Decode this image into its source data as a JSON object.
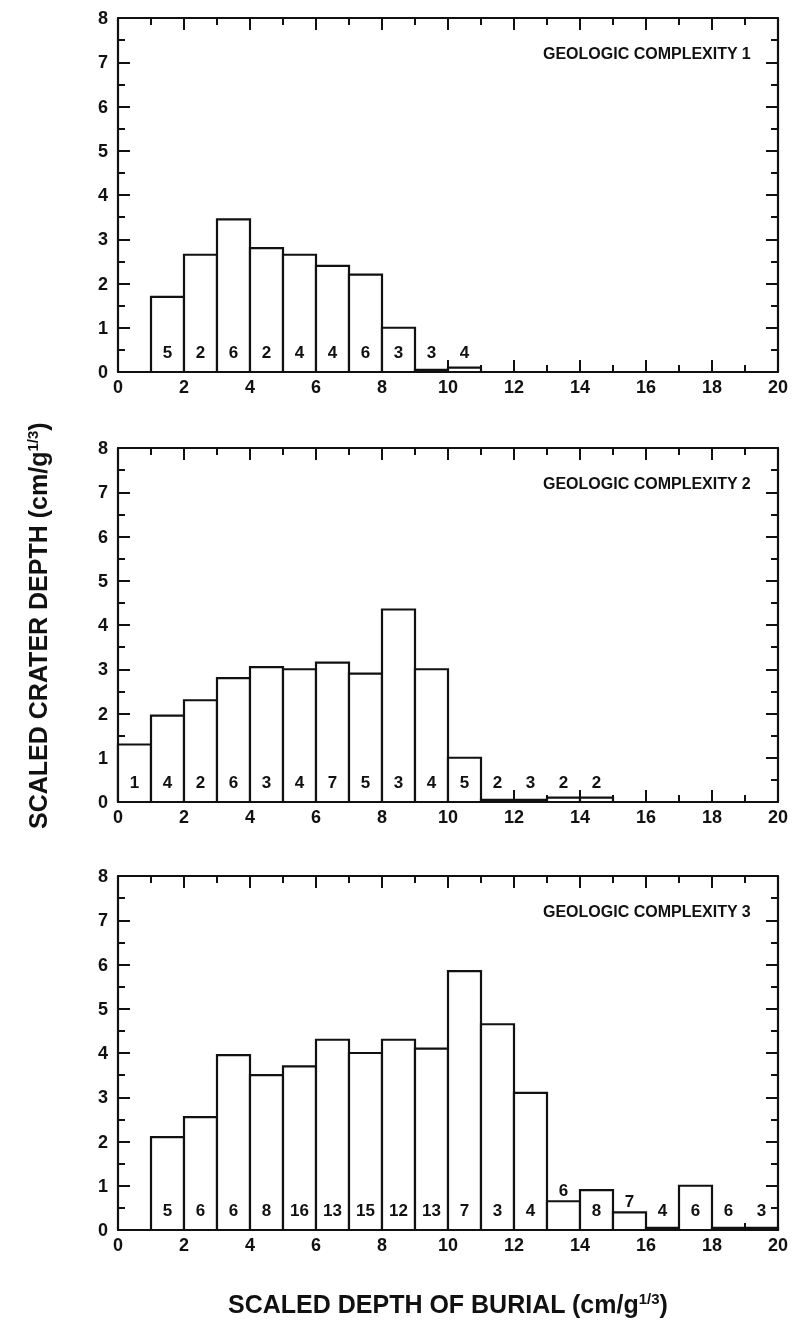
{
  "chart_data": [
    {
      "type": "histogram",
      "title": "GEOLOGIC COMPLEXITY 1",
      "bins": [
        1,
        2,
        3,
        4,
        5,
        6,
        7,
        8,
        9,
        10,
        11
      ],
      "values": [
        1.7,
        2.65,
        3.45,
        2.8,
        2.65,
        2.4,
        2.2,
        1.0,
        0.05,
        0.1
      ],
      "xlim": [
        0,
        20
      ],
      "xticks": [
        0,
        2,
        4,
        6,
        8,
        10,
        12,
        14,
        16,
        18,
        20
      ],
      "ylim": [
        0,
        8
      ],
      "yticks": [
        0,
        1,
        2,
        3,
        4,
        5,
        6,
        7,
        8
      ],
      "grid": false,
      "annotations": [
        "5",
        "2",
        "6",
        "2",
        "4",
        "4",
        "6",
        "3",
        "3",
        "4"
      ]
    },
    {
      "type": "histogram",
      "title": "GEOLOGIC COMPLEXITY 2",
      "ylabel": "SCALED CRATER DEPTH (cm/g$^{1/3}$)",
      "bins": [
        0,
        1,
        2,
        3,
        4,
        5,
        6,
        7,
        8,
        9,
        10,
        11,
        12,
        13,
        14,
        15
      ],
      "values": [
        1.3,
        1.95,
        2.3,
        2.8,
        3.05,
        3.0,
        3.15,
        2.9,
        4.35,
        3.0,
        1.0,
        0.05,
        0.05,
        0.1,
        0.1
      ],
      "xlim": [
        0,
        20
      ],
      "xticks": [
        0,
        2,
        4,
        6,
        8,
        10,
        12,
        14,
        16,
        18,
        20
      ],
      "ylim": [
        0,
        8
      ],
      "yticks": [
        0,
        1,
        2,
        3,
        4,
        5,
        6,
        7,
        8
      ],
      "grid": false,
      "annotations": [
        "1",
        "4",
        "2",
        "6",
        "3",
        "4",
        "7",
        "5",
        "3",
        "4",
        "5",
        "2",
        "3",
        "2",
        "2"
      ]
    },
    {
      "type": "histogram",
      "title": "GEOLOGIC COMPLEXITY 3",
      "xlabel": "SCALED DEPTH OF BURIAL (cm/g$^{1/3}$)",
      "bins": [
        1,
        2,
        3,
        4,
        5,
        6,
        7,
        8,
        9,
        10,
        11,
        12,
        13,
        14,
        15,
        16,
        17,
        18,
        19,
        20
      ],
      "values": [
        2.1,
        2.55,
        3.95,
        3.5,
        3.7,
        4.3,
        4.0,
        4.3,
        4.1,
        5.85,
        4.65,
        3.1,
        0.65,
        0.9,
        0.4,
        0.05,
        1.0,
        0.05,
        0.05
      ],
      "xlim": [
        0,
        20
      ],
      "xticks": [
        0,
        2,
        4,
        6,
        8,
        10,
        12,
        14,
        16,
        18,
        20
      ],
      "ylim": [
        0,
        8
      ],
      "yticks": [
        0,
        1,
        2,
        3,
        4,
        5,
        6,
        7,
        8
      ],
      "grid": false,
      "annotations": [
        "5",
        "6",
        "6",
        "8",
        "16",
        "13",
        "15",
        "12",
        "13",
        "7",
        "3",
        "4",
        "6",
        "8",
        "7",
        "4",
        "6",
        "6",
        "3"
      ]
    }
  ]
}
